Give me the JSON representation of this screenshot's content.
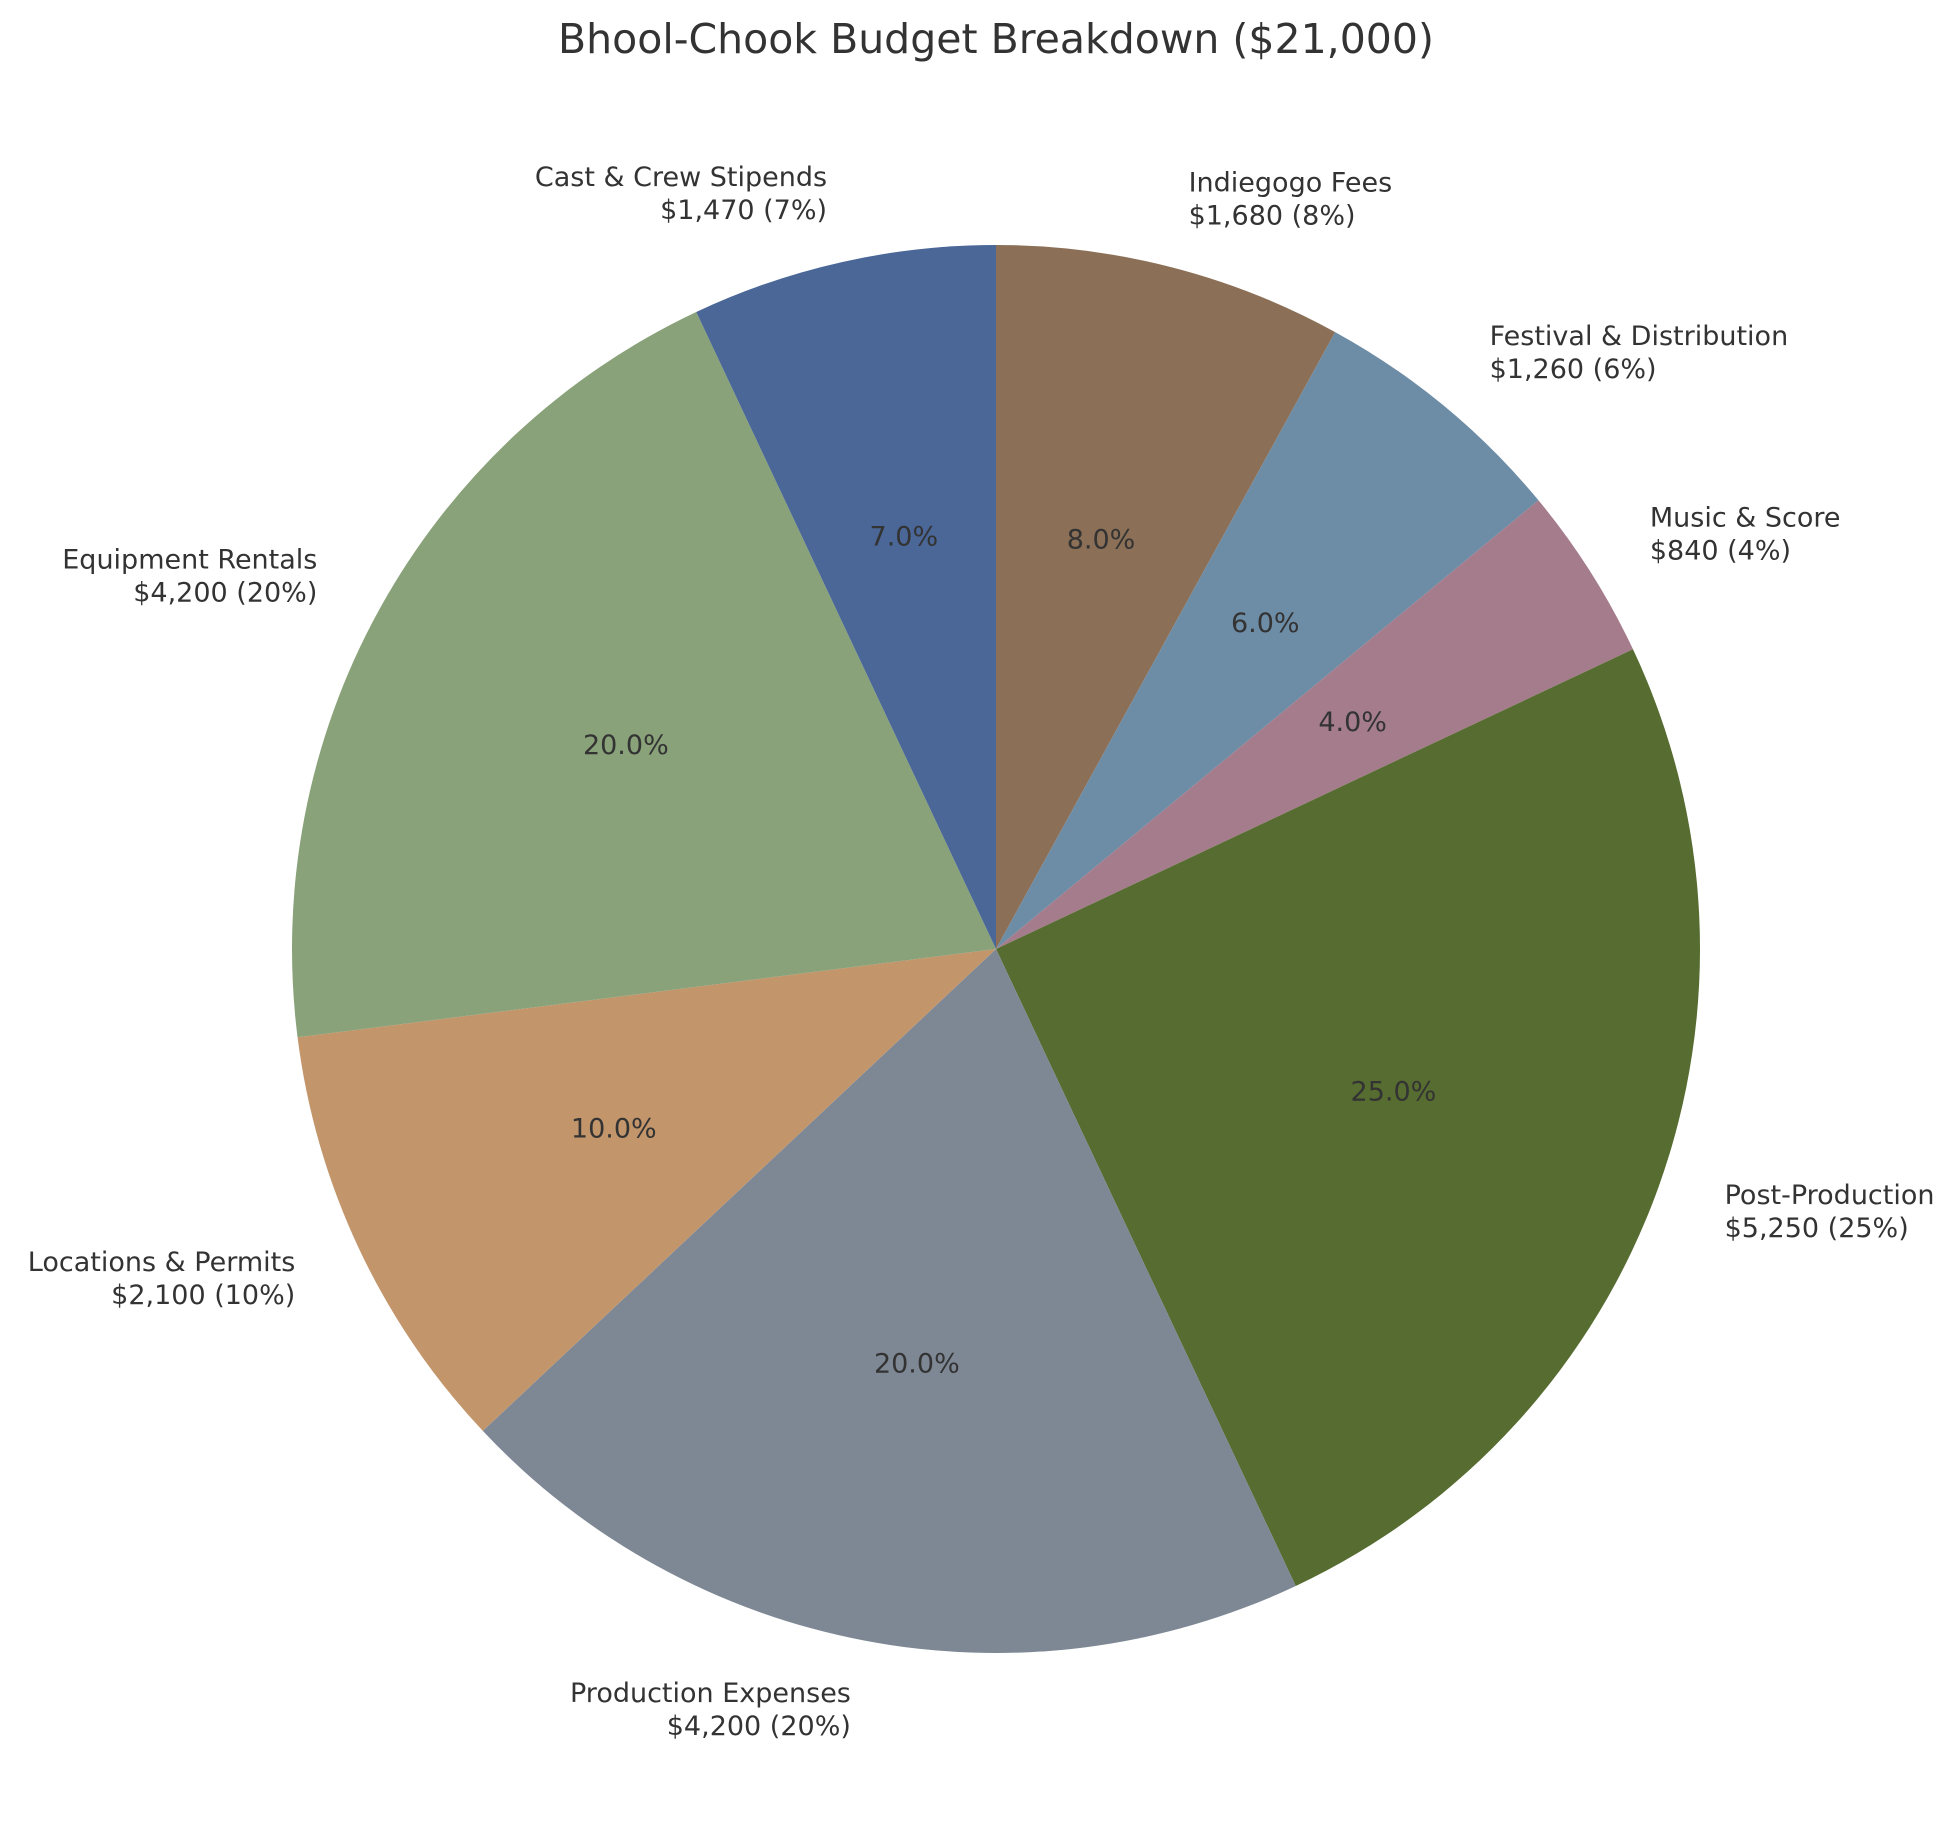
{
  "chart_data": {
    "type": "pie",
    "title": "Bhool-Chook Budget Breakdown ($21,000)",
    "slices": [
      {
        "name": "Indiegogo Fees",
        "value": 1680,
        "percent": 8,
        "amount_label": "$1,680 (8%)",
        "pct_label": "8.0%",
        "color": "#8b6f56"
      },
      {
        "name": "Festival & Distribution",
        "value": 1260,
        "percent": 6,
        "amount_label": "$1,260 (6%)",
        "pct_label": "6.0%",
        "color": "#6d8ca6"
      },
      {
        "name": "Music & Score",
        "value": 840,
        "percent": 4,
        "amount_label": "$840 (4%)",
        "pct_label": "4.0%",
        "color": "#a47c8b"
      },
      {
        "name": "Post-Production",
        "value": 5250,
        "percent": 25,
        "amount_label": "$5,250 (25%)",
        "pct_label": "25.0%",
        "color": "#566c30"
      },
      {
        "name": "Production Expenses",
        "value": 4200,
        "percent": 20,
        "amount_label": "$4,200 (20%)",
        "pct_label": "20.0%",
        "color": "#7e8895"
      },
      {
        "name": "Locations & Permits",
        "value": 2100,
        "percent": 10,
        "amount_label": "$2,100 (10%)",
        "pct_label": "10.0%",
        "color": "#c3956b"
      },
      {
        "name": "Equipment Rentals",
        "value": 4200,
        "percent": 20,
        "amount_label": "$4,200 (20%)",
        "pct_label": "20.0%",
        "color": "#89a279"
      },
      {
        "name": "Cast & Crew Stipends",
        "value": 1470,
        "percent": 7,
        "amount_label": "$1,470 (7%)",
        "pct_label": "7.0%",
        "color": "#4a6798"
      }
    ],
    "start": "top",
    "direction": "clockwise",
    "legend": "none"
  }
}
